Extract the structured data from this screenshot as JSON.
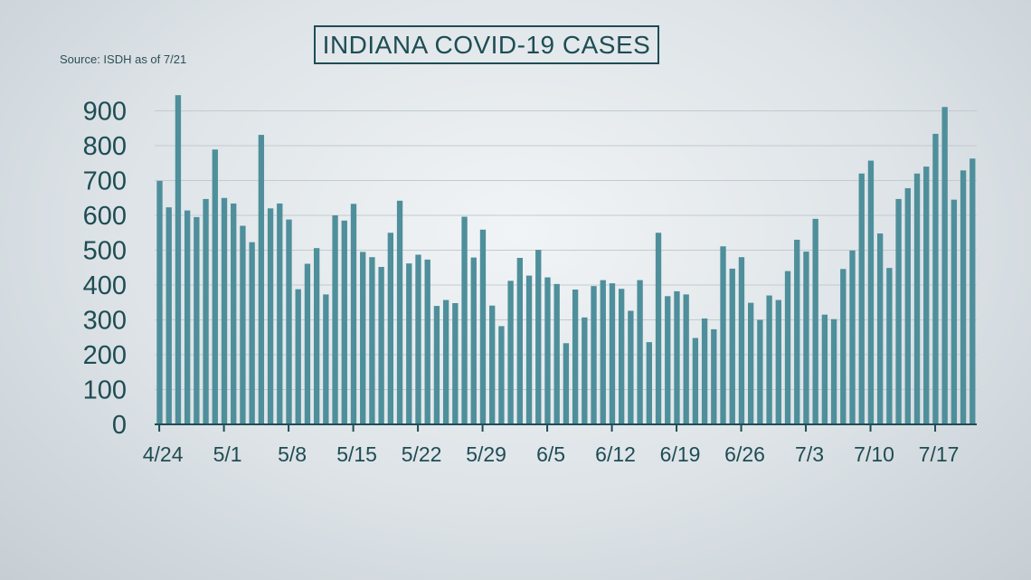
{
  "title": "INDIANA COVID-19 CASES",
  "source": "Source: ISDH as of 7/21",
  "colors": {
    "bar": "#4e8f9b",
    "text": "#1e4d54",
    "grid": "#c2cbd0",
    "axis": "#1e4d54"
  },
  "chart_data": {
    "type": "bar",
    "title": "INDIANA COVID-19 CASES",
    "xlabel": "",
    "ylabel": "",
    "ylim": [
      0,
      900
    ],
    "yticks": [
      0,
      100,
      200,
      300,
      400,
      500,
      600,
      700,
      800,
      900
    ],
    "grid": true,
    "x_start": "4/24",
    "x_end": "7/20",
    "xtick_labels": [
      "4/24",
      "5/1",
      "5/8",
      "5/15",
      "5/22",
      "5/29",
      "6/5",
      "6/12",
      "6/19",
      "6/26",
      "7/3",
      "7/10",
      "7/17"
    ],
    "values": [
      699,
      623,
      945,
      614,
      595,
      647,
      789,
      650,
      634,
      570,
      523,
      831,
      620,
      634,
      588,
      388,
      461,
      506,
      373,
      600,
      585,
      633,
      495,
      480,
      452,
      550,
      642,
      462,
      487,
      473,
      340,
      357,
      348,
      596,
      479,
      559,
      341,
      282,
      412,
      478,
      427,
      501,
      422,
      403,
      233,
      387,
      307,
      397,
      414,
      405,
      389,
      326,
      414,
      236,
      550,
      368,
      382,
      373,
      248,
      304,
      273,
      511,
      447,
      480,
      349,
      300,
      370,
      357,
      440,
      530,
      496,
      590,
      315,
      302,
      446,
      499,
      720,
      757,
      548,
      449,
      647,
      678,
      720,
      740,
      834,
      911,
      645,
      729,
      763
    ]
  }
}
